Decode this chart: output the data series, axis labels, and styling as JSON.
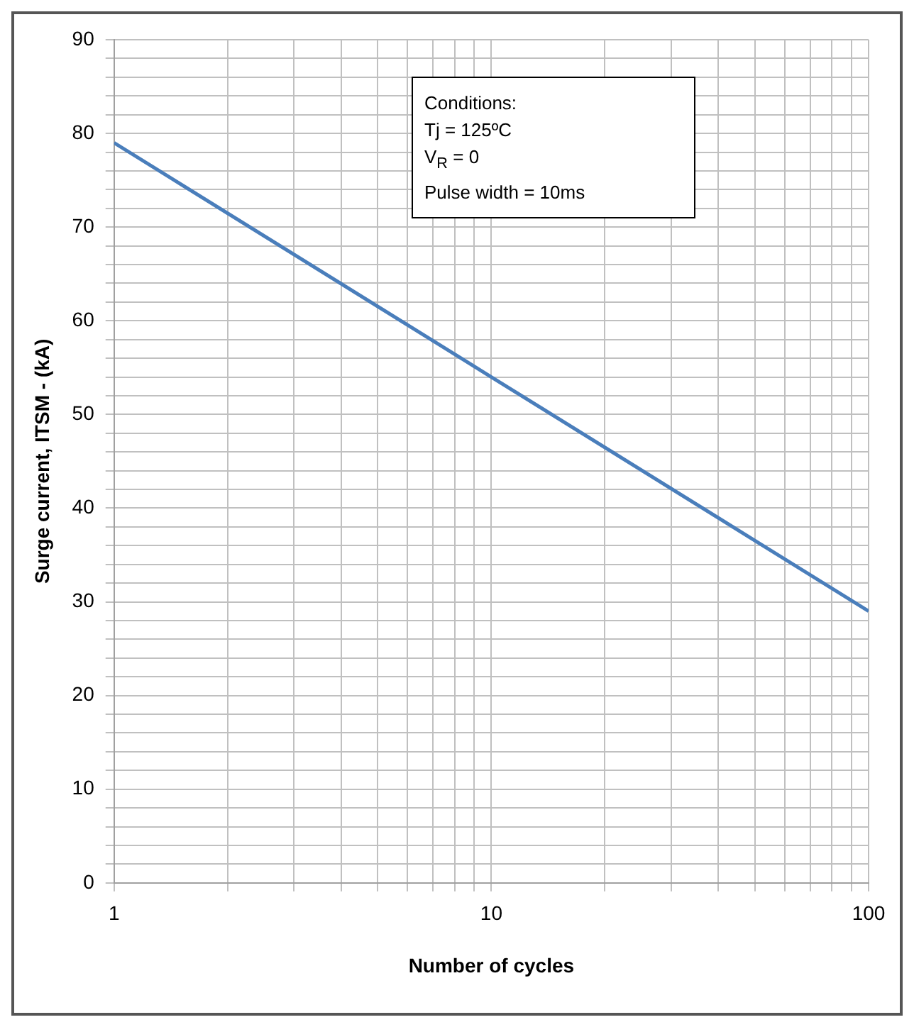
{
  "chart_data": {
    "type": "line",
    "xlabel": "Number of cycles",
    "ylabel": "Surge current, ITSM - (kA)",
    "x": [
      1,
      10,
      100
    ],
    "series": [
      {
        "color": "#4a7ebb",
        "values": [
          79,
          54,
          29
        ]
      }
    ],
    "log": "x",
    "xlim": [
      1,
      100
    ],
    "ylim": [
      0,
      90
    ],
    "xticks": [
      1,
      {
        "value": 2,
        "label": null
      },
      {
        "value": 3,
        "label": null
      },
      {
        "value": 4,
        "label": null
      },
      {
        "value": 5,
        "label": null
      },
      {
        "value": 6,
        "label": null
      },
      {
        "value": 7,
        "label": null
      },
      {
        "value": 8,
        "label": null
      },
      {
        "value": 9,
        "label": null
      },
      10,
      {
        "value": 20,
        "label": null
      },
      {
        "value": 30,
        "label": null
      },
      {
        "value": 40,
        "label": null
      },
      {
        "value": 50,
        "label": null
      },
      {
        "value": 60,
        "label": null
      },
      {
        "value": 70,
        "label": null
      },
      {
        "value": 80,
        "label": null
      },
      {
        "value": 90,
        "label": null
      },
      100
    ],
    "yticks": [
      0,
      {
        "value": 2,
        "label": null
      },
      {
        "value": 4,
        "label": null
      },
      {
        "value": 6,
        "label": null
      },
      {
        "value": 8,
        "label": null
      },
      10,
      {
        "value": 12,
        "label": null
      },
      {
        "value": 14,
        "label": null
      },
      {
        "value": 16,
        "label": null
      },
      {
        "value": 18,
        "label": null
      },
      20,
      {
        "value": 22,
        "label": null
      },
      {
        "value": 24,
        "label": null
      },
      {
        "value": 26,
        "label": null
      },
      {
        "value": 28,
        "label": null
      },
      30,
      {
        "value": 32,
        "label": null
      },
      {
        "value": 34,
        "label": null
      },
      {
        "value": 36,
        "label": null
      },
      {
        "value": 38,
        "label": null
      },
      40,
      {
        "value": 42,
        "label": null
      },
      {
        "value": 44,
        "label": null
      },
      {
        "value": 46,
        "label": null
      },
      {
        "value": 48,
        "label": null
      },
      50,
      {
        "value": 52,
        "label": null
      },
      {
        "value": 54,
        "label": null
      },
      {
        "value": 56,
        "label": null
      },
      {
        "value": 58,
        "label": null
      },
      60,
      {
        "value": 62,
        "label": null
      },
      {
        "value": 64,
        "label": null
      },
      {
        "value": 66,
        "label": null
      },
      {
        "value": 68,
        "label": null
      },
      70,
      {
        "value": 72,
        "label": null
      },
      {
        "value": 74,
        "label": null
      },
      {
        "value": 76,
        "label": null
      },
      {
        "value": 78,
        "label": null
      },
      80,
      {
        "value": 82,
        "label": null
      },
      {
        "value": 84,
        "label": null
      },
      {
        "value": 86,
        "label": null
      },
      {
        "value": 88,
        "label": null
      },
      90
    ],
    "grid": true,
    "legend": false,
    "marker": "none",
    "line_style": "solid",
    "annotations": [
      "Conditions:",
      "Tj = 125ºC",
      "V$_{R}$ = 0",
      "Pulse width = 10ms"
    ]
  }
}
